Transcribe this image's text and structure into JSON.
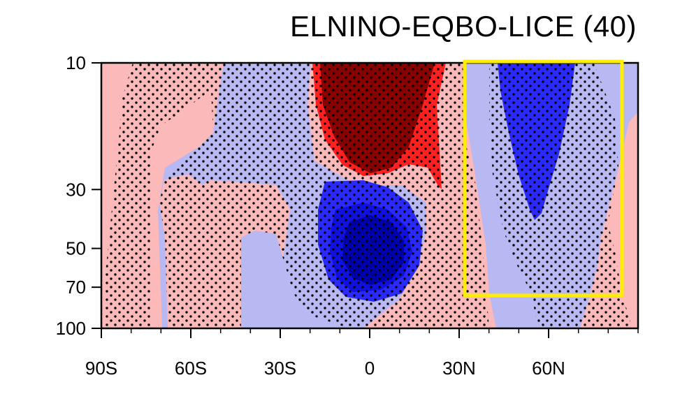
{
  "chart_data": {
    "type": "contour",
    "title": "ELNINO-EQBO-LICE (40)",
    "x_axis": {
      "range": [
        -90,
        90
      ],
      "ticks": [
        -90,
        -60,
        -30,
        0,
        30,
        60
      ],
      "tick_labels": [
        "90S",
        "60S",
        "30S",
        "0",
        "30N",
        "60N"
      ]
    },
    "y_axis": {
      "scale": "log",
      "reversed": true,
      "range": [
        10,
        100
      ],
      "ticks": [
        10,
        30,
        50,
        70,
        100
      ],
      "tick_labels": [
        "10",
        "30",
        "50",
        "70",
        "100"
      ]
    },
    "contour_colors": {
      "background": "#fbb9b9",
      "light_blue": "#b8b8f3",
      "mid_blue": "#2a2aff",
      "deep_blue": "#1111dd",
      "darkest_blue": "#0000aa",
      "bright_red": "#ff2020",
      "dark_red": "#880000"
    },
    "highlight_box": {
      "color": "#ffee00",
      "lat_range": [
        31,
        85
      ],
      "pressure_range": [
        10,
        75
      ]
    },
    "stippling": "significance"
  }
}
